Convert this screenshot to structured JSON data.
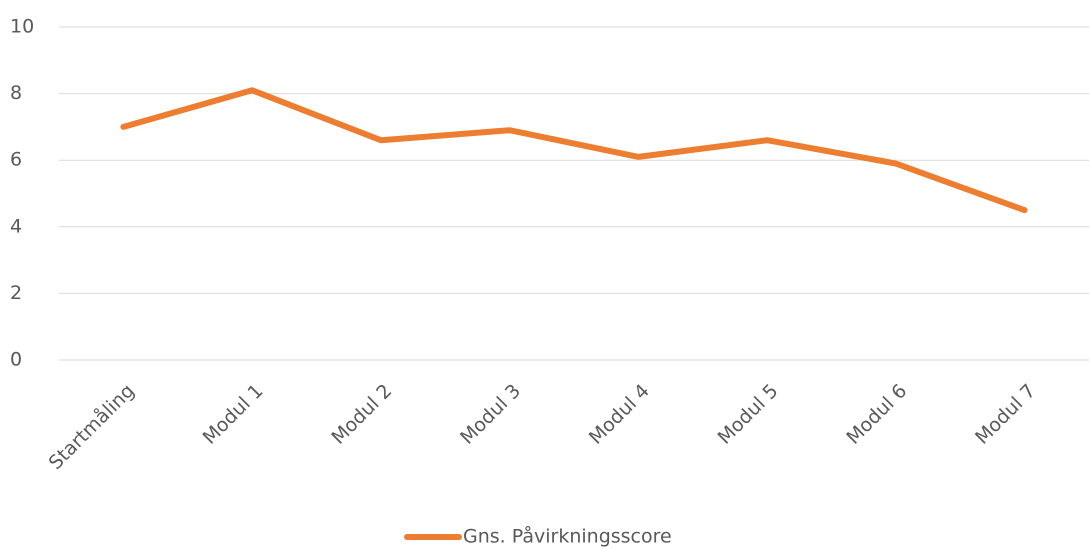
{
  "chart_data": {
    "type": "line",
    "categories": [
      "Startmåling",
      "Modul 1",
      "Modul 2",
      "Modul 3",
      "Modul 4",
      "Modul 5",
      "Modul 6",
      "Modul 7"
    ],
    "series": [
      {
        "name": "Gns. Påvirkningsscore",
        "color": "#ED7D31",
        "values": [
          7.0,
          8.1,
          6.6,
          6.9,
          6.1,
          6.6,
          5.9,
          4.5
        ]
      }
    ],
    "ylim": [
      0,
      10
    ],
    "yticks": [
      0,
      2,
      4,
      6,
      8,
      10
    ],
    "grid": true,
    "legend": "bottom"
  }
}
